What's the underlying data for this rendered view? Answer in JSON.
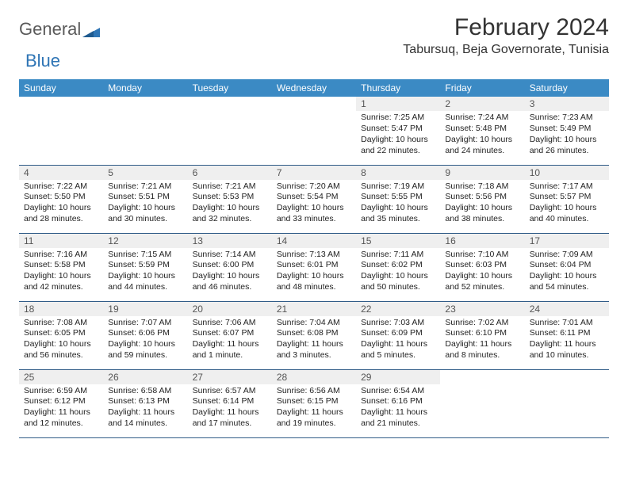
{
  "brand": {
    "word1": "General",
    "word2": "Blue"
  },
  "title": "February 2024",
  "location": "Tabursuq, Beja Governorate, Tunisia",
  "colors": {
    "header_bg": "#3b8ac4",
    "row_border": "#2f5b87",
    "daynum_bg": "#efefef",
    "brand_gray": "#5a5a5a",
    "brand_blue": "#2f75b5"
  },
  "weekdays": [
    "Sunday",
    "Monday",
    "Tuesday",
    "Wednesday",
    "Thursday",
    "Friday",
    "Saturday"
  ],
  "grid": {
    "lead_blanks": 4,
    "trail_blanks": 2,
    "days": [
      {
        "n": 1,
        "sunrise": "7:25 AM",
        "sunset": "5:47 PM",
        "daylight": "10 hours and 22 minutes."
      },
      {
        "n": 2,
        "sunrise": "7:24 AM",
        "sunset": "5:48 PM",
        "daylight": "10 hours and 24 minutes."
      },
      {
        "n": 3,
        "sunrise": "7:23 AM",
        "sunset": "5:49 PM",
        "daylight": "10 hours and 26 minutes."
      },
      {
        "n": 4,
        "sunrise": "7:22 AM",
        "sunset": "5:50 PM",
        "daylight": "10 hours and 28 minutes."
      },
      {
        "n": 5,
        "sunrise": "7:21 AM",
        "sunset": "5:51 PM",
        "daylight": "10 hours and 30 minutes."
      },
      {
        "n": 6,
        "sunrise": "7:21 AM",
        "sunset": "5:53 PM",
        "daylight": "10 hours and 32 minutes."
      },
      {
        "n": 7,
        "sunrise": "7:20 AM",
        "sunset": "5:54 PM",
        "daylight": "10 hours and 33 minutes."
      },
      {
        "n": 8,
        "sunrise": "7:19 AM",
        "sunset": "5:55 PM",
        "daylight": "10 hours and 35 minutes."
      },
      {
        "n": 9,
        "sunrise": "7:18 AM",
        "sunset": "5:56 PM",
        "daylight": "10 hours and 38 minutes."
      },
      {
        "n": 10,
        "sunrise": "7:17 AM",
        "sunset": "5:57 PM",
        "daylight": "10 hours and 40 minutes."
      },
      {
        "n": 11,
        "sunrise": "7:16 AM",
        "sunset": "5:58 PM",
        "daylight": "10 hours and 42 minutes."
      },
      {
        "n": 12,
        "sunrise": "7:15 AM",
        "sunset": "5:59 PM",
        "daylight": "10 hours and 44 minutes."
      },
      {
        "n": 13,
        "sunrise": "7:14 AM",
        "sunset": "6:00 PM",
        "daylight": "10 hours and 46 minutes."
      },
      {
        "n": 14,
        "sunrise": "7:13 AM",
        "sunset": "6:01 PM",
        "daylight": "10 hours and 48 minutes."
      },
      {
        "n": 15,
        "sunrise": "7:11 AM",
        "sunset": "6:02 PM",
        "daylight": "10 hours and 50 minutes."
      },
      {
        "n": 16,
        "sunrise": "7:10 AM",
        "sunset": "6:03 PM",
        "daylight": "10 hours and 52 minutes."
      },
      {
        "n": 17,
        "sunrise": "7:09 AM",
        "sunset": "6:04 PM",
        "daylight": "10 hours and 54 minutes."
      },
      {
        "n": 18,
        "sunrise": "7:08 AM",
        "sunset": "6:05 PM",
        "daylight": "10 hours and 56 minutes."
      },
      {
        "n": 19,
        "sunrise": "7:07 AM",
        "sunset": "6:06 PM",
        "daylight": "10 hours and 59 minutes."
      },
      {
        "n": 20,
        "sunrise": "7:06 AM",
        "sunset": "6:07 PM",
        "daylight": "11 hours and 1 minute."
      },
      {
        "n": 21,
        "sunrise": "7:04 AM",
        "sunset": "6:08 PM",
        "daylight": "11 hours and 3 minutes."
      },
      {
        "n": 22,
        "sunrise": "7:03 AM",
        "sunset": "6:09 PM",
        "daylight": "11 hours and 5 minutes."
      },
      {
        "n": 23,
        "sunrise": "7:02 AM",
        "sunset": "6:10 PM",
        "daylight": "11 hours and 8 minutes."
      },
      {
        "n": 24,
        "sunrise": "7:01 AM",
        "sunset": "6:11 PM",
        "daylight": "11 hours and 10 minutes."
      },
      {
        "n": 25,
        "sunrise": "6:59 AM",
        "sunset": "6:12 PM",
        "daylight": "11 hours and 12 minutes."
      },
      {
        "n": 26,
        "sunrise": "6:58 AM",
        "sunset": "6:13 PM",
        "daylight": "11 hours and 14 minutes."
      },
      {
        "n": 27,
        "sunrise": "6:57 AM",
        "sunset": "6:14 PM",
        "daylight": "11 hours and 17 minutes."
      },
      {
        "n": 28,
        "sunrise": "6:56 AM",
        "sunset": "6:15 PM",
        "daylight": "11 hours and 19 minutes."
      },
      {
        "n": 29,
        "sunrise": "6:54 AM",
        "sunset": "6:16 PM",
        "daylight": "11 hours and 21 minutes."
      }
    ]
  },
  "labels": {
    "sunrise": "Sunrise: ",
    "sunset": "Sunset: ",
    "daylight": "Daylight: "
  }
}
